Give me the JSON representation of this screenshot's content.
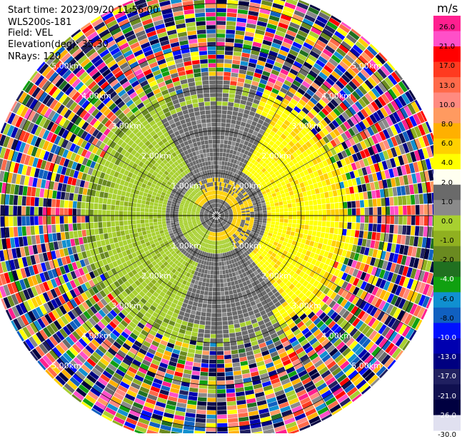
{
  "header": {
    "start_time": "Start time: 2023/09/20 11:56:00",
    "device": "WLS200s-181",
    "field": "Field: VEL",
    "elevation": "Elevation(deg): 35.30",
    "nrays": "NRays: 120"
  },
  "colorbar": {
    "unit": "m/s",
    "labels": [
      "26.0",
      "21.0",
      "17.0",
      "13.0",
      "10.0",
      "8.0",
      "6.0",
      "4.0",
      "2.0",
      "1.0",
      "0.0",
      "-1.0",
      "-2.0",
      "-4.0",
      "-6.0",
      "-8.0",
      "-10.0",
      "-13.0",
      "-17.0",
      "-21.0",
      "-26.0",
      "-30.0"
    ],
    "colors": [
      "#ff1f8f",
      "#ff4fc8",
      "#ff0000",
      "#ff3a20",
      "#ff6a4a",
      "#ff8a80",
      "#ff9a60",
      "#ffb000",
      "#ffd000",
      "#ffff00",
      "#fffff0",
      "#6a6a6a",
      "#8a8a8a",
      "#a8d030",
      "#90b020",
      "#6a8a20",
      "#207020",
      "#10a010",
      "#1090d0",
      "#1060c0",
      "#0010ff",
      "#0000b0",
      "#000080",
      "#202060",
      "#101050",
      "#000040",
      "#e0e0f0"
    ]
  },
  "chart_data": {
    "type": "ppi-polar",
    "field": "VEL",
    "unit": "m/s",
    "nrays": 120,
    "elevation_deg": 35.3,
    "range_rings_km": [
      {
        "label": "1.00km",
        "radius_km": 1.0
      },
      {
        "label": "2.00km",
        "radius_km": 2.0
      },
      {
        "label": "3.00km",
        "radius_km": 3.0
      },
      {
        "label": "4.00km",
        "radius_km": 4.0
      },
      {
        "label": "5.00km",
        "radius_km": 5.0
      }
    ],
    "ring_label_angles_deg": [
      45,
      135,
      225,
      315
    ],
    "max_range_km": 5.45,
    "velocity_pattern": {
      "inner_yellow_positive_band_km": [
        0.35,
        0.55
      ],
      "inner_green_negative_band_km": [
        0.55,
        0.85
      ],
      "yellow_sector_deg": [
        0,
        150
      ],
      "green_sector_deg": [
        200,
        360
      ],
      "noise_begins_km": 3.2
    }
  }
}
